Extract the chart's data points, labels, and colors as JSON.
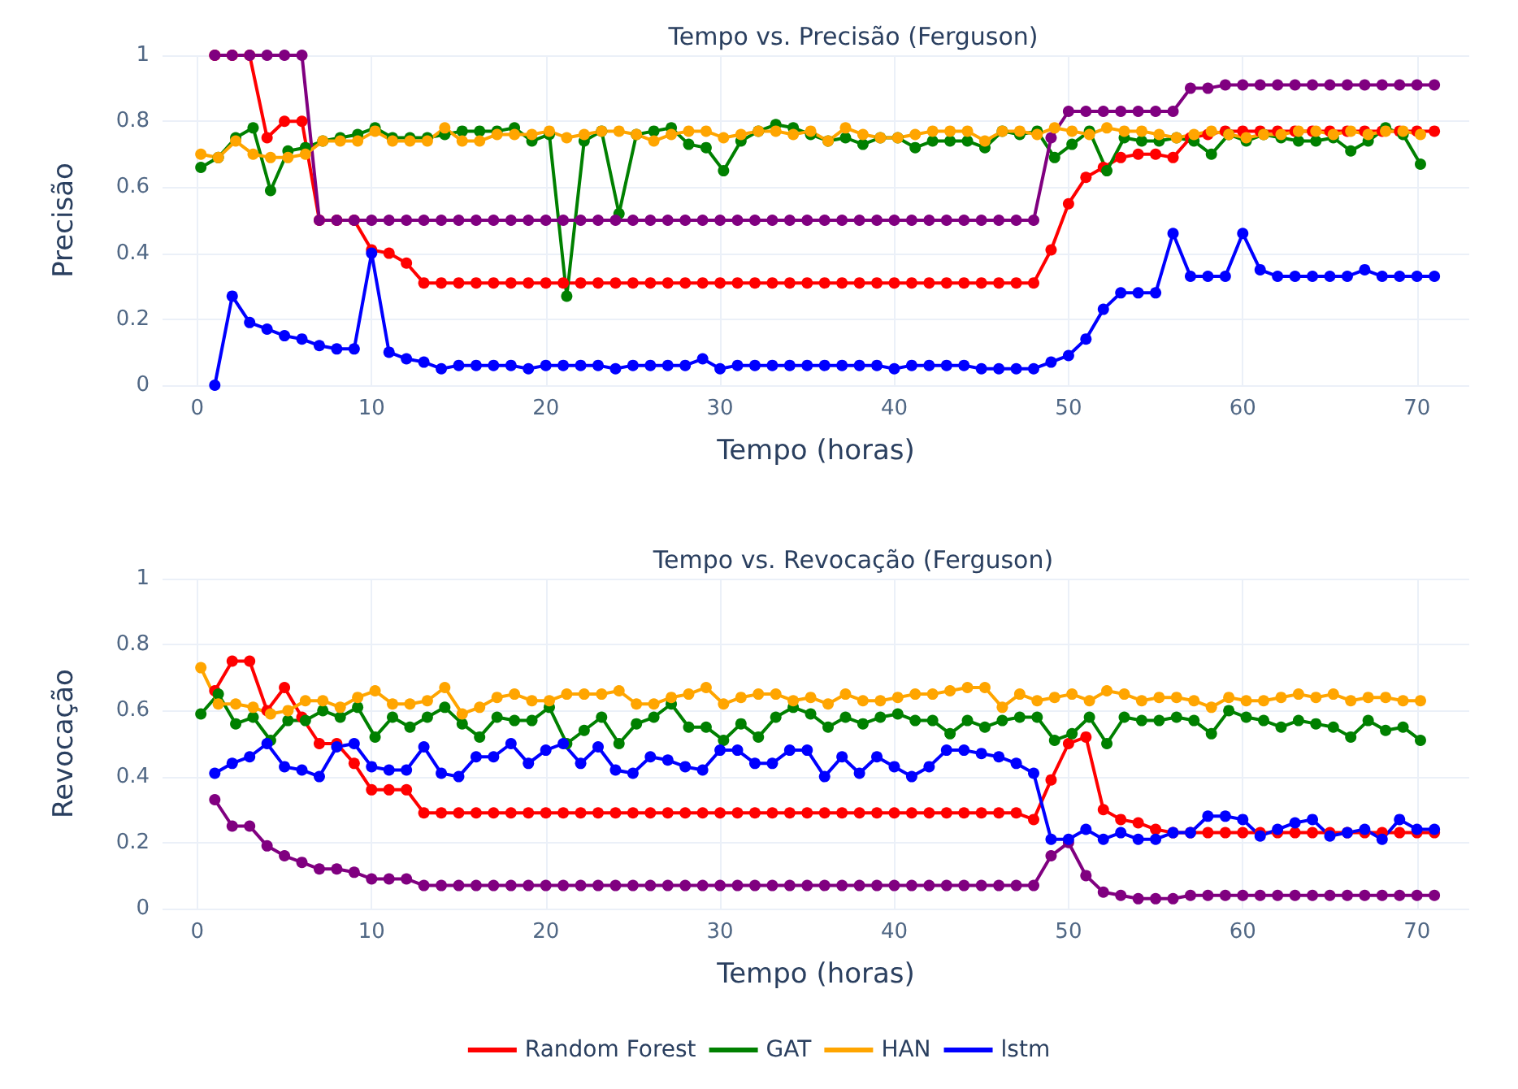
{
  "chart_data": [
    {
      "type": "line",
      "title": "Tempo vs. Precisão (Ferguson)",
      "xlabel": "Tempo (horas)",
      "ylabel": "Precisão",
      "xlim": [
        -2,
        73
      ],
      "xticks": [
        0,
        10,
        20,
        30,
        40,
        50,
        60,
        70
      ],
      "ylim": [
        0,
        1
      ],
      "yticks": [
        0,
        0.2,
        0.4,
        0.6,
        0.8,
        1
      ],
      "grid": true,
      "legend": false,
      "marker": "circle",
      "line_style": "solid",
      "x": [
        1,
        2,
        3,
        4,
        5,
        6,
        7,
        8,
        9,
        10,
        11,
        12,
        13,
        14,
        15,
        16,
        17,
        18,
        19,
        20,
        21,
        22,
        23,
        24,
        25,
        26,
        27,
        28,
        29,
        30,
        31,
        32,
        33,
        34,
        35,
        36,
        37,
        38,
        39,
        40,
        41,
        42,
        43,
        44,
        45,
        46,
        47,
        48,
        49,
        50,
        51,
        52,
        53,
        54,
        55,
        56,
        57,
        58,
        59,
        60,
        61,
        62,
        63,
        64,
        65,
        66,
        67,
        68,
        69,
        70,
        71
      ],
      "series": [
        {
          "color": "#ff0000",
          "values": [
            1,
            1,
            1,
            0.75,
            0.8,
            0.8,
            0.5,
            0.5,
            0.5,
            0.41,
            0.4,
            0.37,
            0.31,
            0.31,
            0.31,
            0.31,
            0.31,
            0.31,
            0.31,
            0.31,
            0.31,
            0.31,
            0.31,
            0.31,
            0.31,
            0.31,
            0.31,
            0.31,
            0.31,
            0.31,
            0.31,
            0.31,
            0.31,
            0.31,
            0.31,
            0.31,
            0.31,
            0.31,
            0.31,
            0.31,
            0.31,
            0.31,
            0.31,
            0.31,
            0.31,
            0.31,
            0.31,
            0.31,
            0.41,
            0.55,
            0.63,
            0.66,
            0.69,
            0.7,
            0.7,
            0.69,
            0.75,
            0.76,
            0.77,
            0.77,
            0.77,
            0.77,
            0.77,
            0.77,
            0.77,
            0.77,
            0.77,
            0.77,
            0.77,
            0.77,
            0.77
          ]
        },
        {
          "color": "#008000",
          "x": [
            0.2,
            1.2,
            2.2,
            3.2,
            4.2,
            5.2,
            6.2,
            7.2,
            8.2,
            9.2,
            10.2,
            11.2,
            12.2,
            13.2,
            14.2,
            15.2,
            16.2,
            17.2,
            18.2,
            19.2,
            20.2,
            21.2,
            22.2,
            23.2,
            24.2,
            25.2,
            26.2,
            27.2,
            28.2,
            29.2,
            30.2,
            31.2,
            32.2,
            33.2,
            34.2,
            35.2,
            36.2,
            37.2,
            38.2,
            39.2,
            40.2,
            41.2,
            42.2,
            43.2,
            44.2,
            45.2,
            46.2,
            47.2,
            48.2,
            49.2,
            50.2,
            51.2,
            52.2,
            53.2,
            54.2,
            55.2,
            56.2,
            57.2,
            58.2,
            59.2,
            60.2,
            61.2,
            62.2,
            63.2,
            64.2,
            65.2,
            66.2,
            67.2,
            68.2,
            69.2,
            70.2
          ],
          "values": [
            0.66,
            0.69,
            0.75,
            0.78,
            0.59,
            0.71,
            0.72,
            0.74,
            0.75,
            0.76,
            0.78,
            0.75,
            0.75,
            0.75,
            0.76,
            0.77,
            0.77,
            0.77,
            0.78,
            0.74,
            0.76,
            0.27,
            0.74,
            0.77,
            0.52,
            0.76,
            0.77,
            0.78,
            0.73,
            0.72,
            0.65,
            0.74,
            0.77,
            0.79,
            0.78,
            0.76,
            0.74,
            0.75,
            0.73,
            0.75,
            0.75,
            0.72,
            0.74,
            0.74,
            0.74,
            0.72,
            0.77,
            0.76,
            0.77,
            0.69,
            0.73,
            0.77,
            0.65,
            0.75,
            0.74,
            0.74,
            0.75,
            0.74,
            0.7,
            0.76,
            0.74,
            0.76,
            0.75,
            0.74,
            0.74,
            0.75,
            0.71,
            0.74,
            0.78,
            0.76,
            0.67
          ]
        },
        {
          "color": "#800080",
          "values": [
            1,
            1,
            1,
            1,
            1,
            1,
            0.5,
            0.5,
            0.5,
            0.5,
            0.5,
            0.5,
            0.5,
            0.5,
            0.5,
            0.5,
            0.5,
            0.5,
            0.5,
            0.5,
            0.5,
            0.5,
            0.5,
            0.5,
            0.5,
            0.5,
            0.5,
            0.5,
            0.5,
            0.5,
            0.5,
            0.5,
            0.5,
            0.5,
            0.5,
            0.5,
            0.5,
            0.5,
            0.5,
            0.5,
            0.5,
            0.5,
            0.5,
            0.5,
            0.5,
            0.5,
            0.5,
            0.5,
            0.75,
            0.83,
            0.83,
            0.83,
            0.83,
            0.83,
            0.83,
            0.83,
            0.9,
            0.9,
            0.91,
            0.91,
            0.91,
            0.91,
            0.91,
            0.91,
            0.91,
            0.91,
            0.91,
            0.91,
            0.91,
            0.91,
            0.91
          ]
        },
        {
          "color": "#ffa500",
          "x": [
            0.2,
            1.2,
            2.2,
            3.2,
            4.2,
            5.2,
            6.2,
            7.2,
            8.2,
            9.2,
            10.2,
            11.2,
            12.2,
            13.2,
            14.2,
            15.2,
            16.2,
            17.2,
            18.2,
            19.2,
            20.2,
            21.2,
            22.2,
            23.2,
            24.2,
            25.2,
            26.2,
            27.2,
            28.2,
            29.2,
            30.2,
            31.2,
            32.2,
            33.2,
            34.2,
            35.2,
            36.2,
            37.2,
            38.2,
            39.2,
            40.2,
            41.2,
            42.2,
            43.2,
            44.2,
            45.2,
            46.2,
            47.2,
            48.2,
            49.2,
            50.2,
            51.2,
            52.2,
            53.2,
            54.2,
            55.2,
            56.2,
            57.2,
            58.2,
            59.2,
            60.2,
            61.2,
            62.2,
            63.2,
            64.2,
            65.2,
            66.2,
            67.2,
            68.2,
            69.2,
            70.2
          ],
          "values": [
            0.7,
            0.69,
            0.74,
            0.7,
            0.69,
            0.69,
            0.7,
            0.74,
            0.74,
            0.74,
            0.77,
            0.74,
            0.74,
            0.74,
            0.78,
            0.74,
            0.74,
            0.76,
            0.76,
            0.76,
            0.77,
            0.75,
            0.76,
            0.77,
            0.77,
            0.76,
            0.74,
            0.76,
            0.77,
            0.77,
            0.75,
            0.76,
            0.77,
            0.77,
            0.76,
            0.77,
            0.74,
            0.78,
            0.76,
            0.75,
            0.75,
            0.76,
            0.77,
            0.77,
            0.77,
            0.74,
            0.77,
            0.77,
            0.76,
            0.78,
            0.77,
            0.76,
            0.78,
            0.77,
            0.77,
            0.76,
            0.75,
            0.76,
            0.77,
            0.76,
            0.75,
            0.76,
            0.76,
            0.77,
            0.77,
            0.76,
            0.77,
            0.76,
            0.77,
            0.77,
            0.76
          ]
        },
        {
          "color": "#0000ff",
          "values": [
            0,
            0.27,
            0.19,
            0.17,
            0.15,
            0.14,
            0.12,
            0.11,
            0.11,
            0.4,
            0.1,
            0.08,
            0.07,
            0.05,
            0.06,
            0.06,
            0.06,
            0.06,
            0.05,
            0.06,
            0.06,
            0.06,
            0.06,
            0.05,
            0.06,
            0.06,
            0.06,
            0.06,
            0.08,
            0.05,
            0.06,
            0.06,
            0.06,
            0.06,
            0.06,
            0.06,
            0.06,
            0.06,
            0.06,
            0.05,
            0.06,
            0.06,
            0.06,
            0.06,
            0.05,
            0.05,
            0.05,
            0.05,
            0.07,
            0.09,
            0.14,
            0.23,
            0.28,
            0.28,
            0.28,
            0.46,
            0.33,
            0.33,
            0.33,
            0.46,
            0.35,
            0.33,
            0.33,
            0.33,
            0.33,
            0.33,
            0.35,
            0.33,
            0.33,
            0.33,
            0.33
          ]
        }
      ]
    },
    {
      "type": "line",
      "title": "Tempo vs. Revocação (Ferguson)",
      "xlabel": "Tempo (horas)",
      "ylabel": "Revocação",
      "xlim": [
        -2,
        73
      ],
      "xticks": [
        0,
        10,
        20,
        30,
        40,
        50,
        60,
        70
      ],
      "ylim": [
        0,
        1
      ],
      "yticks": [
        0,
        0.2,
        0.4,
        0.6,
        0.8,
        1
      ],
      "grid": true,
      "legend": "bottom",
      "marker": "circle",
      "line_style": "solid",
      "x": [
        1,
        2,
        3,
        4,
        5,
        6,
        7,
        8,
        9,
        10,
        11,
        12,
        13,
        14,
        15,
        16,
        17,
        18,
        19,
        20,
        21,
        22,
        23,
        24,
        25,
        26,
        27,
        28,
        29,
        30,
        31,
        32,
        33,
        34,
        35,
        36,
        37,
        38,
        39,
        40,
        41,
        42,
        43,
        44,
        45,
        46,
        47,
        48,
        49,
        50,
        51,
        52,
        53,
        54,
        55,
        56,
        57,
        58,
        59,
        60,
        61,
        62,
        63,
        64,
        65,
        66,
        67,
        68,
        69,
        70,
        71
      ],
      "series": [
        {
          "name": "Random Forest",
          "color": "#ff0000",
          "values": [
            0.66,
            0.75,
            0.75,
            0.6,
            0.67,
            0.58,
            0.5,
            0.5,
            0.44,
            0.36,
            0.36,
            0.36,
            0.29,
            0.29,
            0.29,
            0.29,
            0.29,
            0.29,
            0.29,
            0.29,
            0.29,
            0.29,
            0.29,
            0.29,
            0.29,
            0.29,
            0.29,
            0.29,
            0.29,
            0.29,
            0.29,
            0.29,
            0.29,
            0.29,
            0.29,
            0.29,
            0.29,
            0.29,
            0.29,
            0.29,
            0.29,
            0.29,
            0.29,
            0.29,
            0.29,
            0.29,
            0.29,
            0.27,
            0.39,
            0.5,
            0.52,
            0.3,
            0.27,
            0.26,
            0.24,
            0.23,
            0.23,
            0.23,
            0.23,
            0.23,
            0.23,
            0.23,
            0.23,
            0.23,
            0.23,
            0.23,
            0.23,
            0.23,
            0.23,
            0.23,
            0.23
          ]
        },
        {
          "name": "GAT",
          "color": "#008000",
          "x": [
            0.2,
            1.2,
            2.2,
            3.2,
            4.2,
            5.2,
            6.2,
            7.2,
            8.2,
            9.2,
            10.2,
            11.2,
            12.2,
            13.2,
            14.2,
            15.2,
            16.2,
            17.2,
            18.2,
            19.2,
            20.2,
            21.2,
            22.2,
            23.2,
            24.2,
            25.2,
            26.2,
            27.2,
            28.2,
            29.2,
            30.2,
            31.2,
            32.2,
            33.2,
            34.2,
            35.2,
            36.2,
            37.2,
            38.2,
            39.2,
            40.2,
            41.2,
            42.2,
            43.2,
            44.2,
            45.2,
            46.2,
            47.2,
            48.2,
            49.2,
            50.2,
            51.2,
            52.2,
            53.2,
            54.2,
            55.2,
            56.2,
            57.2,
            58.2,
            59.2,
            60.2,
            61.2,
            62.2,
            63.2,
            64.2,
            65.2,
            66.2,
            67.2,
            68.2,
            69.2,
            70.2
          ],
          "values": [
            0.59,
            0.65,
            0.56,
            0.58,
            0.51,
            0.57,
            0.57,
            0.6,
            0.58,
            0.61,
            0.52,
            0.58,
            0.55,
            0.58,
            0.61,
            0.56,
            0.52,
            0.58,
            0.57,
            0.57,
            0.61,
            0.5,
            0.54,
            0.58,
            0.5,
            0.56,
            0.58,
            0.62,
            0.55,
            0.55,
            0.51,
            0.56,
            0.52,
            0.58,
            0.61,
            0.59,
            0.55,
            0.58,
            0.56,
            0.58,
            0.59,
            0.57,
            0.57,
            0.53,
            0.57,
            0.55,
            0.57,
            0.58,
            0.58,
            0.51,
            0.53,
            0.58,
            0.5,
            0.58,
            0.57,
            0.57,
            0.58,
            0.57,
            0.53,
            0.6,
            0.58,
            0.57,
            0.55,
            0.57,
            0.56,
            0.55,
            0.52,
            0.57,
            0.54,
            0.55,
            0.51
          ]
        },
        {
          "color": "#800080",
          "values": [
            0.33,
            0.25,
            0.25,
            0.19,
            0.16,
            0.14,
            0.12,
            0.12,
            0.11,
            0.09,
            0.09,
            0.09,
            0.07,
            0.07,
            0.07,
            0.07,
            0.07,
            0.07,
            0.07,
            0.07,
            0.07,
            0.07,
            0.07,
            0.07,
            0.07,
            0.07,
            0.07,
            0.07,
            0.07,
            0.07,
            0.07,
            0.07,
            0.07,
            0.07,
            0.07,
            0.07,
            0.07,
            0.07,
            0.07,
            0.07,
            0.07,
            0.07,
            0.07,
            0.07,
            0.07,
            0.07,
            0.07,
            0.07,
            0.16,
            0.2,
            0.1,
            0.05,
            0.04,
            0.03,
            0.03,
            0.03,
            0.04,
            0.04,
            0.04,
            0.04,
            0.04,
            0.04,
            0.04,
            0.04,
            0.04,
            0.04,
            0.04,
            0.04,
            0.04,
            0.04,
            0.04
          ]
        },
        {
          "name": "HAN",
          "color": "#ffa500",
          "x": [
            0.2,
            1.2,
            2.2,
            3.2,
            4.2,
            5.2,
            6.2,
            7.2,
            8.2,
            9.2,
            10.2,
            11.2,
            12.2,
            13.2,
            14.2,
            15.2,
            16.2,
            17.2,
            18.2,
            19.2,
            20.2,
            21.2,
            22.2,
            23.2,
            24.2,
            25.2,
            26.2,
            27.2,
            28.2,
            29.2,
            30.2,
            31.2,
            32.2,
            33.2,
            34.2,
            35.2,
            36.2,
            37.2,
            38.2,
            39.2,
            40.2,
            41.2,
            42.2,
            43.2,
            44.2,
            45.2,
            46.2,
            47.2,
            48.2,
            49.2,
            50.2,
            51.2,
            52.2,
            53.2,
            54.2,
            55.2,
            56.2,
            57.2,
            58.2,
            59.2,
            60.2,
            61.2,
            62.2,
            63.2,
            64.2,
            65.2,
            66.2,
            67.2,
            68.2,
            69.2,
            70.2
          ],
          "values": [
            0.73,
            0.62,
            0.62,
            0.61,
            0.59,
            0.6,
            0.63,
            0.63,
            0.61,
            0.64,
            0.66,
            0.62,
            0.62,
            0.63,
            0.67,
            0.59,
            0.61,
            0.64,
            0.65,
            0.63,
            0.63,
            0.65,
            0.65,
            0.65,
            0.66,
            0.62,
            0.62,
            0.64,
            0.65,
            0.67,
            0.62,
            0.64,
            0.65,
            0.65,
            0.63,
            0.64,
            0.62,
            0.65,
            0.63,
            0.63,
            0.64,
            0.65,
            0.65,
            0.66,
            0.67,
            0.67,
            0.61,
            0.65,
            0.63,
            0.64,
            0.65,
            0.63,
            0.66,
            0.65,
            0.63,
            0.64,
            0.64,
            0.63,
            0.61,
            0.64,
            0.63,
            0.63,
            0.64,
            0.65,
            0.64,
            0.65,
            0.63,
            0.64,
            0.64,
            0.63,
            0.63
          ]
        },
        {
          "name": "lstm",
          "color": "#0000ff",
          "values": [
            0.41,
            0.44,
            0.46,
            0.5,
            0.43,
            0.42,
            0.4,
            0.49,
            0.5,
            0.43,
            0.42,
            0.42,
            0.49,
            0.41,
            0.4,
            0.46,
            0.46,
            0.5,
            0.44,
            0.48,
            0.5,
            0.44,
            0.49,
            0.42,
            0.41,
            0.46,
            0.45,
            0.43,
            0.42,
            0.48,
            0.48,
            0.44,
            0.44,
            0.48,
            0.48,
            0.4,
            0.46,
            0.41,
            0.46,
            0.43,
            0.4,
            0.43,
            0.48,
            0.48,
            0.47,
            0.46,
            0.44,
            0.41,
            0.21,
            0.21,
            0.24,
            0.21,
            0.23,
            0.21,
            0.21,
            0.23,
            0.23,
            0.28,
            0.28,
            0.27,
            0.22,
            0.24,
            0.26,
            0.27,
            0.22,
            0.23,
            0.24,
            0.21,
            0.27,
            0.24,
            0.24
          ]
        }
      ]
    }
  ]
}
